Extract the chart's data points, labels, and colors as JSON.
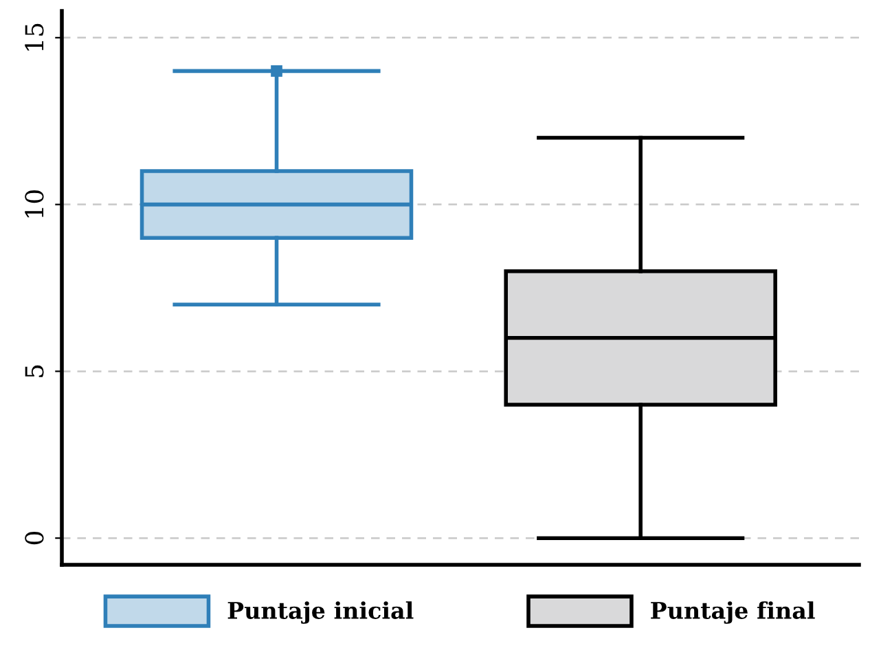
{
  "chart_data": {
    "type": "box",
    "categories": [
      null,
      null
    ],
    "series": [
      {
        "name": "Puntaje inicial",
        "color": "#2f7fb8",
        "colors": [
          "#c1d9ea",
          null
        ],
        "boxes": [
          {
            "low": 7,
            "q1": 9,
            "median": 10,
            "q3": 11,
            "high": 14,
            "outliers": [
              14
            ]
          },
          null
        ]
      },
      {
        "name": "Puntaje final",
        "color": "#000000",
        "colors": [
          null,
          "#d9d9da"
        ],
        "boxes": [
          null,
          {
            "low": 0,
            "q1": 4,
            "median": 6,
            "q3": 8,
            "high": 12
          }
        ]
      }
    ],
    "ylim": [
      -0.8,
      15.8
    ],
    "yticks": [
      0,
      5,
      10,
      15
    ],
    "grid": "y",
    "legend": "bottom",
    "marker": "square"
  }
}
